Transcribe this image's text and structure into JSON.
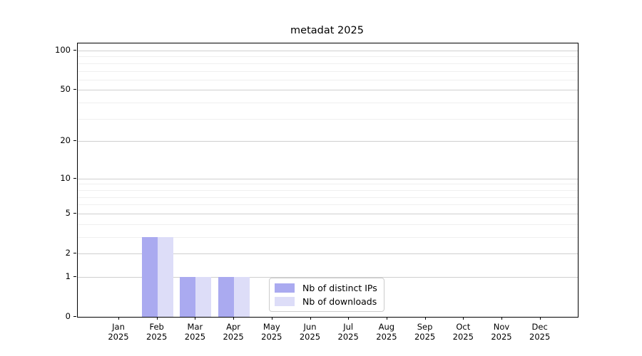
{
  "chart_data": {
    "type": "bar",
    "title": "metadat 2025",
    "categories": [
      "Jan",
      "Feb",
      "Mar",
      "Apr",
      "May",
      "Jun",
      "Jul",
      "Aug",
      "Sep",
      "Oct",
      "Nov",
      "Dec"
    ],
    "x_sublabel": "2025",
    "series": [
      {
        "name": "Nb of distinct IPs",
        "color": "#aaaaf0",
        "values": [
          0,
          3,
          1,
          1,
          0,
          0,
          0,
          0,
          0,
          0,
          0,
          0
        ]
      },
      {
        "name": "Nb of downloads",
        "color": "#ddddf8",
        "values": [
          0,
          3,
          1,
          1,
          0,
          0,
          0,
          0,
          0,
          0,
          0,
          0
        ]
      }
    ],
    "y_scale": "log10(1+v)",
    "ylim": [
      0,
      100
    ],
    "y_ticks": [
      0,
      1,
      2,
      5,
      10,
      20,
      50,
      100
    ],
    "y_minor_ticks": [
      3,
      4,
      6,
      7,
      8,
      9,
      30,
      40,
      60,
      70,
      80,
      90
    ],
    "xlabel": "",
    "ylabel": "",
    "grid": "horizontal",
    "legend_position": "inside-bottom-center",
    "colors": {
      "major_grid": "#cfcfcf",
      "minor_grid": "#efefef",
      "axis": "#000000"
    }
  }
}
